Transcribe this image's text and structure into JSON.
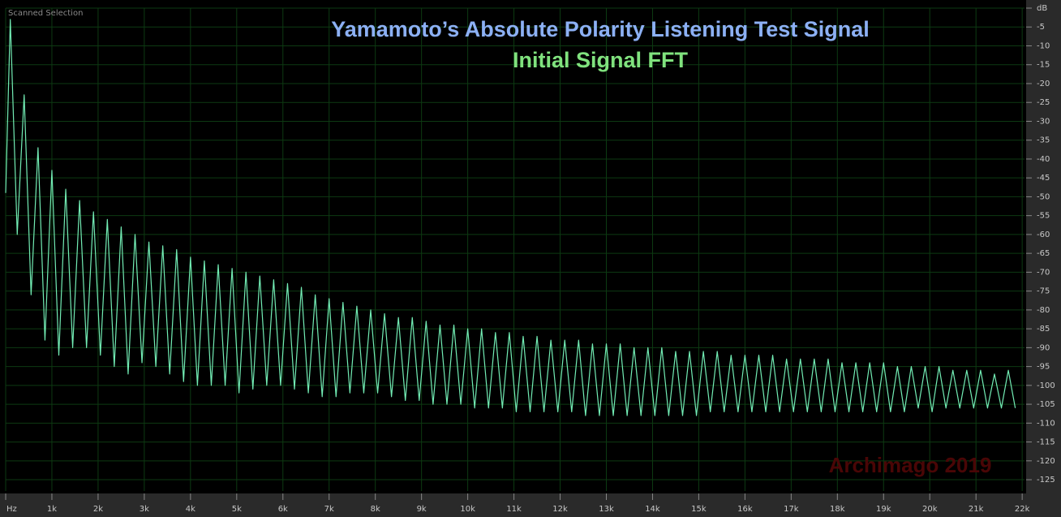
{
  "chart_data": {
    "type": "line",
    "panel_label": "Scanned Selection",
    "title": "Yamamoto’s Absolute Polarity Listening Test Signal",
    "subtitle": "Initial Signal FFT",
    "watermark": "Archimago 2019",
    "grid": true,
    "xlim": [
      0,
      22050
    ],
    "ylim": [
      -128,
      0
    ],
    "xticks": [
      {
        "value": 0,
        "label": "Hz"
      },
      {
        "value": 1000,
        "label": "1k"
      },
      {
        "value": 2000,
        "label": "2k"
      },
      {
        "value": 3000,
        "label": "3k"
      },
      {
        "value": 4000,
        "label": "4k"
      },
      {
        "value": 5000,
        "label": "5k"
      },
      {
        "value": 6000,
        "label": "6k"
      },
      {
        "value": 7000,
        "label": "7k"
      },
      {
        "value": 8000,
        "label": "8k"
      },
      {
        "value": 9000,
        "label": "9k"
      },
      {
        "value": 10000,
        "label": "10k"
      },
      {
        "value": 11000,
        "label": "11k"
      },
      {
        "value": 12000,
        "label": "12k"
      },
      {
        "value": 13000,
        "label": "13k"
      },
      {
        "value": 14000,
        "label": "14k"
      },
      {
        "value": 15000,
        "label": "15k"
      },
      {
        "value": 16000,
        "label": "16k"
      },
      {
        "value": 17000,
        "label": "17k"
      },
      {
        "value": 18000,
        "label": "18k"
      },
      {
        "value": 19000,
        "label": "19k"
      },
      {
        "value": 20000,
        "label": "20k"
      },
      {
        "value": 21000,
        "label": "21k"
      },
      {
        "value": 22000,
        "label": "22k"
      }
    ],
    "yticks": [
      {
        "value": 0,
        "label": "dB"
      },
      -5,
      -10,
      -15,
      -20,
      -25,
      -30,
      -35,
      -40,
      -45,
      -50,
      -55,
      -60,
      -65,
      -70,
      -75,
      -80,
      -85,
      -90,
      -95,
      -100,
      -105,
      -110,
      -115,
      -120,
      -125
    ],
    "series": [
      {
        "color": "#72ecb4",
        "x": [
          0,
          100,
          250,
          400,
          550,
          700,
          850,
          1000,
          1150,
          1300,
          1450,
          1600,
          1750,
          1900,
          2050,
          2200,
          2350,
          2500,
          2650,
          2800,
          2950,
          3100,
          3250,
          3400,
          3550,
          3700,
          3850,
          4000,
          4150,
          4300,
          4450,
          4600,
          4750,
          4900,
          5050,
          5200,
          5350,
          5500,
          5650,
          5800,
          5950,
          6100,
          6250,
          6400,
          6550,
          6700,
          6850,
          7000,
          7150,
          7300,
          7450,
          7600,
          7750,
          7900,
          8050,
          8200,
          8350,
          8500,
          8650,
          8800,
          8950,
          9100,
          9250,
          9400,
          9550,
          9700,
          9850,
          10000,
          10150,
          10300,
          10450,
          10600,
          10750,
          10900,
          11050,
          11200,
          11350,
          11500,
          11650,
          11800,
          11950,
          12100,
          12250,
          12400,
          12550,
          12700,
          12850,
          13000,
          13150,
          13300,
          13450,
          13600,
          13750,
          13900,
          14050,
          14200,
          14350,
          14500,
          14650,
          14800,
          14950,
          15100,
          15250,
          15400,
          15550,
          15700,
          15850,
          16000,
          16150,
          16300,
          16450,
          16600,
          16750,
          16900,
          17050,
          17200,
          17350,
          17500,
          17650,
          17800,
          17950,
          18100,
          18250,
          18400,
          18550,
          18700,
          18850,
          19000,
          19150,
          19300,
          19450,
          19600,
          19750,
          19900,
          20050,
          20200,
          20350,
          20500,
          20650,
          20800,
          20950,
          21100,
          21250,
          21400,
          21550,
          21700,
          21850
        ],
        "values": [
          -49,
          -3,
          -60,
          -23,
          -76,
          -37,
          -88,
          -43,
          -92,
          -48,
          -90,
          -51,
          -90,
          -54,
          -92,
          -56,
          -95,
          -58,
          -97,
          -60,
          -94,
          -62,
          -95,
          -63,
          -97,
          -64,
          -99,
          -66,
          -100,
          -67,
          -100,
          -68,
          -100,
          -69,
          -102,
          -70,
          -101,
          -71,
          -100,
          -72,
          -100,
          -73,
          -101,
          -74,
          -102,
          -76,
          -103,
          -77,
          -103,
          -78,
          -102,
          -79,
          -102,
          -80,
          -102,
          -81,
          -103,
          -82,
          -104,
          -82,
          -104,
          -83,
          -105,
          -84,
          -105,
          -84,
          -105,
          -85,
          -106,
          -85,
          -106,
          -86,
          -106,
          -86,
          -107,
          -87,
          -107,
          -87,
          -107,
          -88,
          -107,
          -88,
          -107,
          -88,
          -108,
          -89,
          -108,
          -89,
          -108,
          -89,
          -108,
          -90,
          -108,
          -90,
          -108,
          -90,
          -108,
          -91,
          -108,
          -91,
          -108,
          -91,
          -107,
          -91,
          -107,
          -92,
          -107,
          -92,
          -107,
          -92,
          -107,
          -92,
          -107,
          -93,
          -107,
          -93,
          -107,
          -93,
          -107,
          -93,
          -107,
          -94,
          -107,
          -94,
          -107,
          -94,
          -107,
          -94,
          -107,
          -95,
          -107,
          -95,
          -106,
          -95,
          -107,
          -95,
          -106,
          -96,
          -106,
          -96,
          -106,
          -96,
          -106,
          -97,
          -106,
          -96,
          -106
        ]
      }
    ]
  }
}
